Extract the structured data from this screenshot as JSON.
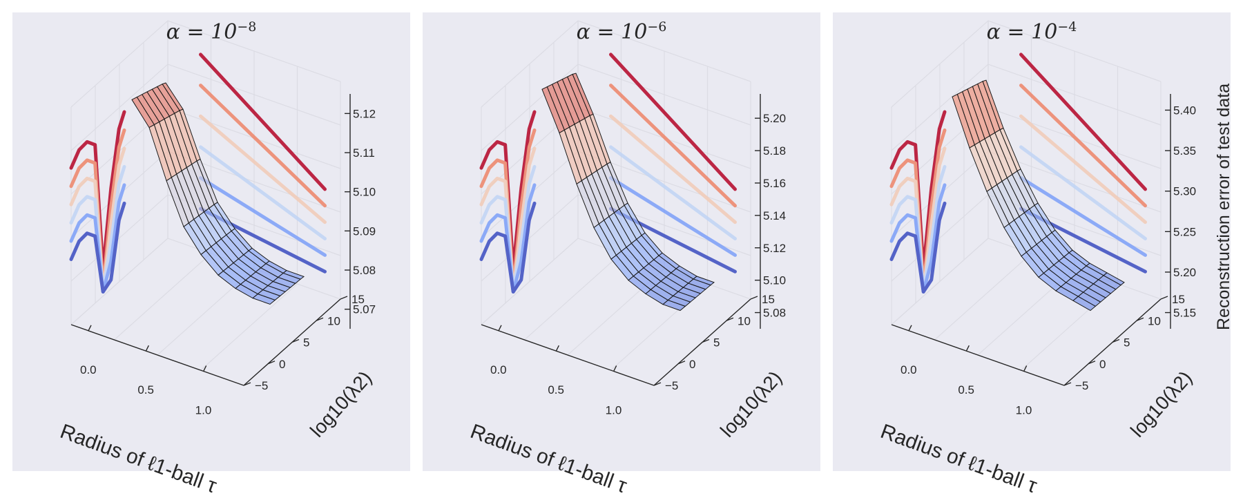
{
  "chart_data": [
    {
      "type": "surface3d",
      "title_base": "α = 10",
      "title_exp": "−8",
      "xlabel": "Radius of ℓ1-ball τ",
      "ylabel": "log10(λ2)",
      "zlabel": "",
      "xticks": [
        "0.0",
        "0.5",
        "1.0"
      ],
      "yticks": [
        "−5",
        "0",
        "5",
        "10",
        "15"
      ],
      "zticks": [
        "5.07",
        "5.08",
        "5.09",
        "5.10",
        "5.11",
        "5.12"
      ],
      "zlim": [
        5.065,
        5.125
      ],
      "tau": [
        0.0,
        0.15,
        0.3,
        0.45,
        0.6,
        0.75,
        0.9,
        1.05,
        1.2
      ],
      "log_lambda": [
        -5,
        -2,
        1,
        4,
        7,
        10,
        13,
        15
      ],
      "error_mean": [
        5.118,
        5.112,
        5.099,
        5.088,
        5.082,
        5.078,
        5.076,
        5.075,
        5.075
      ]
    },
    {
      "type": "surface3d",
      "title_base": "α = 10",
      "title_exp": "−6",
      "xlabel": "Radius of ℓ1-ball τ",
      "ylabel": "log10(λ2)",
      "zlabel": "",
      "xticks": [
        "0.0",
        "0.5",
        "1.0"
      ],
      "yticks": [
        "−5",
        "0",
        "5",
        "10",
        "15"
      ],
      "zticks": [
        "5.08",
        "5.10",
        "5.12",
        "5.14",
        "5.16",
        "5.18",
        "5.20"
      ],
      "zlim": [
        5.07,
        5.215
      ],
      "tau": [
        0.0,
        0.15,
        0.3,
        0.45,
        0.6,
        0.75,
        0.9,
        1.05,
        1.2
      ],
      "log_lambda": [
        -5,
        -2,
        1,
        4,
        7,
        10,
        13,
        15
      ],
      "error_mean": [
        5.205,
        5.18,
        5.15,
        5.125,
        5.108,
        5.098,
        5.093,
        5.09,
        5.09
      ]
    },
    {
      "type": "surface3d",
      "title_base": "α = 10",
      "title_exp": "−4",
      "xlabel": "Radius of ℓ1-ball τ",
      "ylabel": "log10(λ2)",
      "zlabel": "Reconstruction error of test data",
      "xticks": [
        "0.0",
        "0.5",
        "1.0"
      ],
      "yticks": [
        "−5",
        "0",
        "5",
        "10",
        "15"
      ],
      "zticks": [
        "5.15",
        "5.20",
        "5.25",
        "5.30",
        "5.35",
        "5.40"
      ],
      "zlim": [
        5.13,
        5.42
      ],
      "tau": [
        0.0,
        0.15,
        0.3,
        0.45,
        0.6,
        0.75,
        0.9,
        1.05,
        1.2
      ],
      "log_lambda": [
        -5,
        -2,
        1,
        4,
        7,
        10,
        13,
        15
      ],
      "error_mean": [
        5.39,
        5.33,
        5.28,
        5.24,
        5.21,
        5.19,
        5.18,
        5.175,
        5.17
      ]
    }
  ]
}
